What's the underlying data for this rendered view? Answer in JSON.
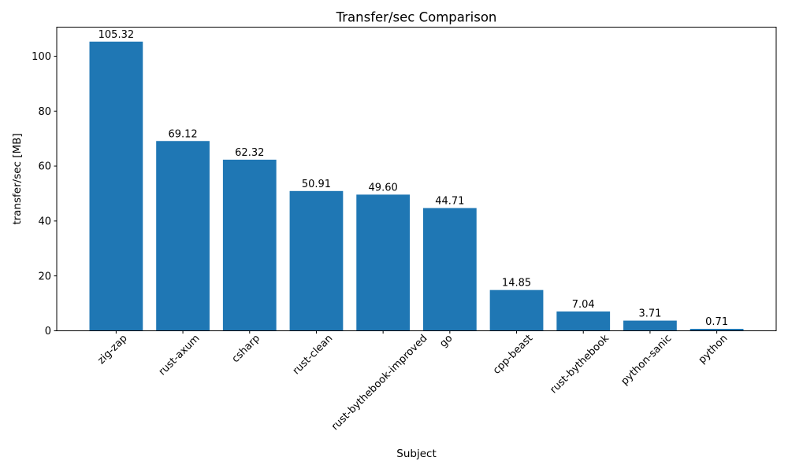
{
  "chart_data": {
    "type": "bar",
    "title": "Transfer/sec Comparison",
    "xlabel": "Subject",
    "ylabel": "transfer/sec [MB]",
    "categories": [
      "zig-zap",
      "rust-axum",
      "csharp",
      "rust-clean",
      "rust-bythebook-improved",
      "go",
      "cpp-beast",
      "rust-bythebook",
      "python-sanic",
      "python"
    ],
    "values": [
      105.32,
      69.12,
      62.32,
      50.91,
      49.6,
      44.71,
      14.85,
      7.04,
      3.71,
      0.71
    ],
    "bar_value_labels": [
      "105.32",
      "69.12",
      "62.32",
      "50.91",
      "49.60",
      "44.71",
      "14.85",
      "7.04",
      "3.71",
      "0.71"
    ],
    "yticks": [
      0,
      20,
      40,
      60,
      80,
      100
    ],
    "ytick_labels": [
      "0",
      "20",
      "40",
      "60",
      "80",
      "100"
    ],
    "ylim": [
      0,
      110.59
    ],
    "x_tick_rotation_deg": 45,
    "grid": false,
    "legend": null,
    "bar_color": "#1f77b4",
    "axis_color": "#000000",
    "text_color": "#000000",
    "background_color": "#ffffff"
  }
}
